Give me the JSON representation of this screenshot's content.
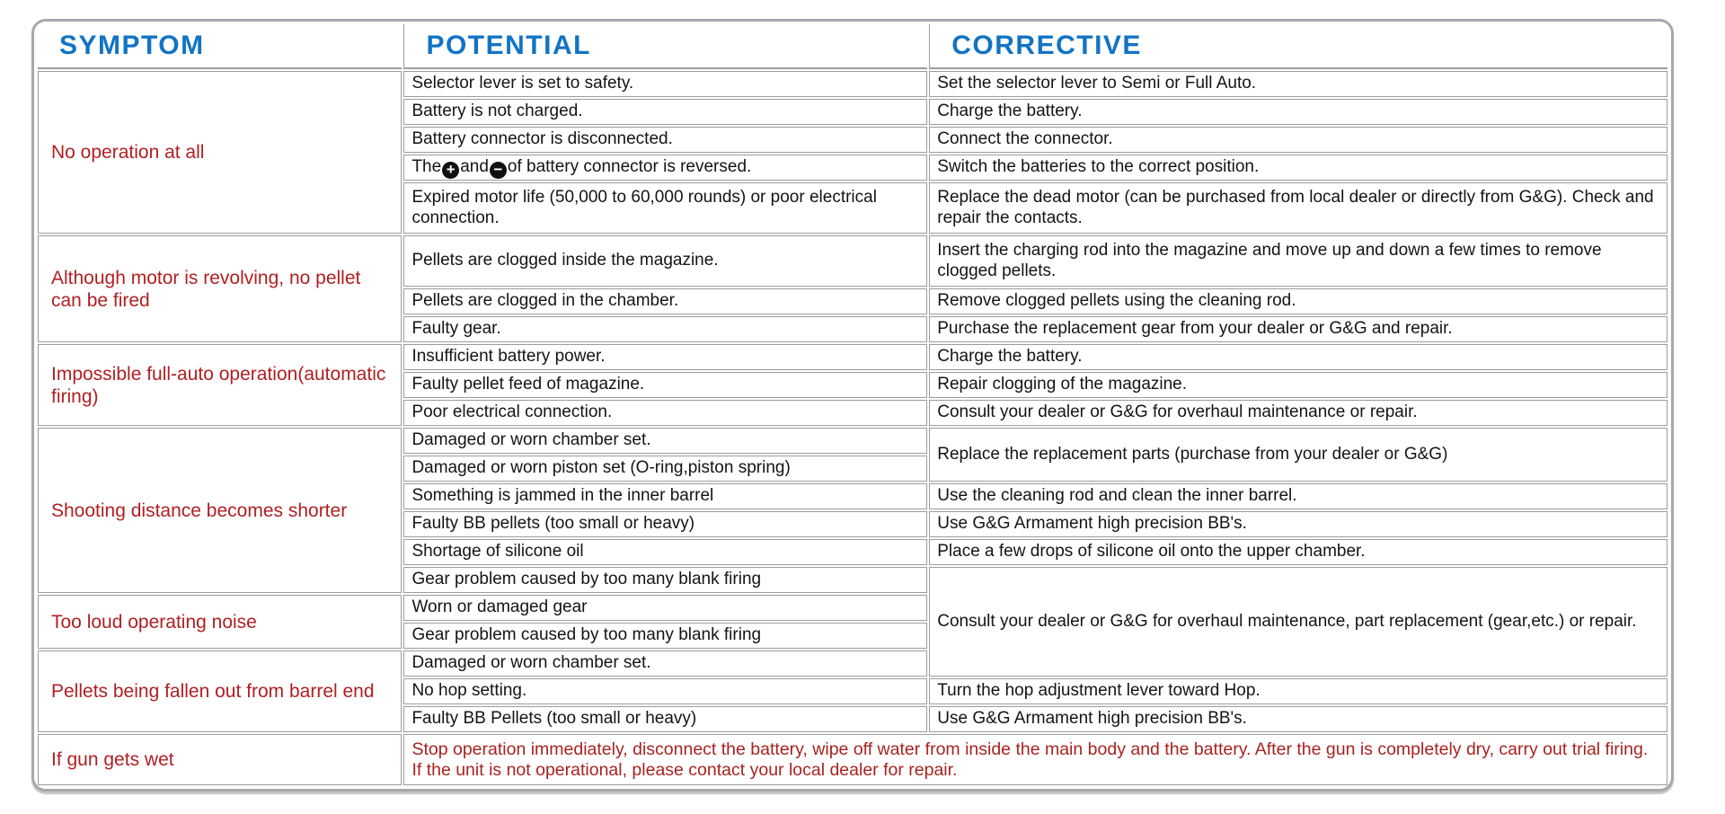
{
  "colors": {
    "header_blue": "#1274c5",
    "symptom_red": "#b01f22",
    "warning_red": "#a8231f",
    "grid_gray": "#9c9c9c",
    "outer_border_gray": "#a5a9ad",
    "body_text": "#141414",
    "background": "#ffffff"
  },
  "icons": {
    "plus": "+",
    "minus": "−"
  },
  "columns": {
    "symptom": "SYMPTOM",
    "potential": "POTENTIAL",
    "corrective": "CORRECTIVE"
  },
  "groups": [
    {
      "symptom": "No operation at all",
      "rows": [
        {
          "potential": "Selector lever is set to safety.",
          "corrective": "Set the selector lever to Semi or Full Auto."
        },
        {
          "potential": "Battery is not charged.",
          "corrective": "Charge the battery."
        },
        {
          "potential": "Battery connector is disconnected.",
          "corrective": "Connect the connector."
        },
        {
          "potential_parts": {
            "pre": "The",
            "mid": "and",
            "post": "of battery connector is reversed."
          },
          "corrective": "Switch the batteries to the correct position."
        },
        {
          "potential": "Expired motor life (50,000 to 60,000 rounds) or poor electrical connection.",
          "corrective": "Replace the dead motor (can be purchased from local dealer or directly from G&G). Check and repair the contacts."
        }
      ]
    },
    {
      "symptom": "Although motor is revolving, no pellet can be fired",
      "rows": [
        {
          "potential": "Pellets are clogged inside the magazine.",
          "corrective": "Insert the charging rod into the magazine and move up and down a few times to remove clogged pellets."
        },
        {
          "potential": "Pellets are clogged in the chamber.",
          "corrective": "Remove clogged pellets using the cleaning rod."
        },
        {
          "potential": "Faulty gear.",
          "corrective": "Purchase the replacement gear from your dealer or G&G and repair."
        }
      ]
    },
    {
      "symptom": "Impossible full-auto operation(automatic firing)",
      "rows": [
        {
          "potential": "Insufficient battery power.",
          "corrective": "Charge the battery."
        },
        {
          "potential": "Faulty pellet feed of magazine.",
          "corrective": "Repair clogging of the magazine."
        },
        {
          "potential": "Poor electrical connection.",
          "corrective": "Consult your dealer or G&G for overhaul maintenance or repair."
        }
      ]
    },
    {
      "symptom": "Shooting distance becomes shorter",
      "rows": [
        {
          "potential": "Damaged or worn chamber set.",
          "corrective": "Replace the replacement parts (purchase from your dealer or G&G)"
        },
        {
          "potential": "Damaged or worn piston set (O-ring,piston spring)"
        },
        {
          "potential": "Something is jammed in the inner barrel",
          "corrective": "Use the cleaning rod and clean the inner barrel."
        },
        {
          "potential": "Faulty BB pellets (too small or heavy)",
          "corrective": "Use G&G Armament high precision BB's."
        },
        {
          "potential": "Shortage of silicone oil",
          "corrective": "Place a few drops of silicone oil onto the upper chamber."
        },
        {
          "potential": "Gear problem caused by too many blank firing",
          "corrective": "Consult your dealer or G&G for overhaul maintenance, part replacement (gear,etc.) or repair."
        }
      ]
    },
    {
      "symptom": "Too loud operating noise",
      "rows": [
        {
          "potential": "Worn or damaged gear"
        },
        {
          "potential": "Gear problem caused by too many blank firing"
        }
      ]
    },
    {
      "symptom": "Pellets being fallen out from barrel end",
      "rows": [
        {
          "potential": "Damaged or worn chamber set."
        },
        {
          "potential": "No hop setting.",
          "corrective": "Turn the hop adjustment lever toward Hop."
        },
        {
          "potential": "Faulty BB Pellets (too small or heavy)",
          "corrective": "Use G&G Armament high precision BB's."
        }
      ]
    },
    {
      "symptom": "If gun gets wet",
      "warning": "Stop operation immediately, disconnect the battery, wipe off water from inside the main body and the battery. After the gun is completely dry, carry out trial firing. If the unit is not operational, please contact your local dealer for repair."
    }
  ]
}
